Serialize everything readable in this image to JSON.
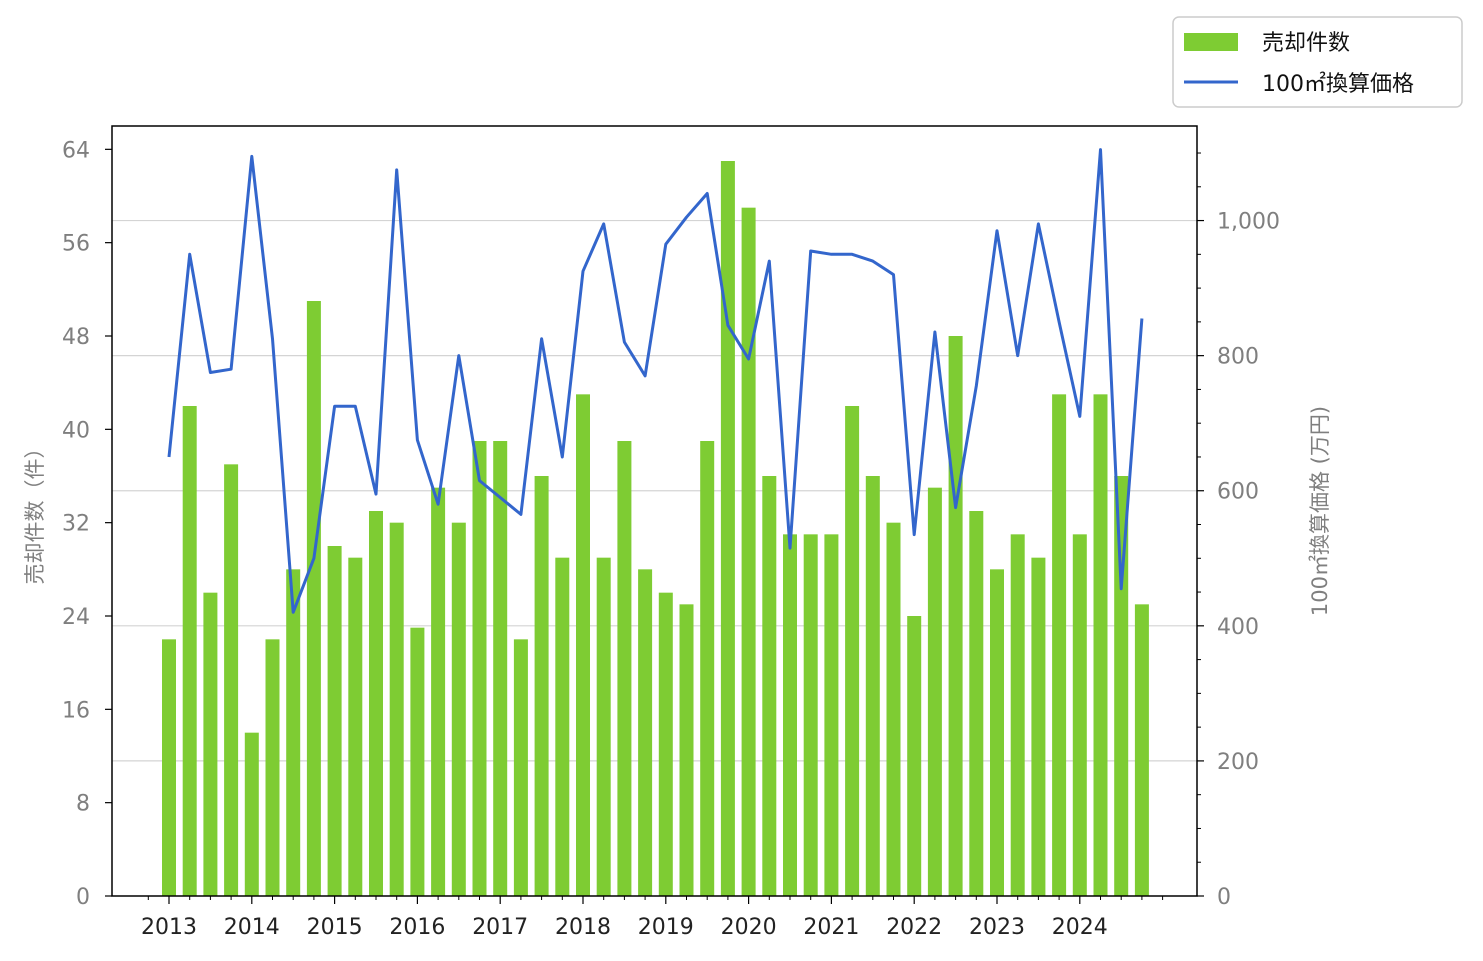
{
  "chart_data": {
    "type": "bar+line",
    "x_tick_labels": [
      "2013",
      "2014",
      "2015",
      "2016",
      "2017",
      "2018",
      "2019",
      "2020",
      "2021",
      "2022",
      "2023",
      "2024"
    ],
    "y_left": {
      "label": "売却件数（件）",
      "range": [
        0,
        66
      ],
      "ticks": [
        0,
        8,
        16,
        24,
        32,
        40,
        48,
        56,
        64
      ]
    },
    "y_right": {
      "label": "100㎡換算価格 (万円)",
      "range": [
        0,
        1140
      ],
      "ticks": [
        0,
        200,
        400,
        600,
        800,
        1000
      ],
      "tick_labels": [
        "0",
        "200",
        "400",
        "600",
        "800",
        "1,000"
      ]
    },
    "grid": "horizontal lines at right-axis major ticks",
    "legend": {
      "position": "top-right (outside plot)",
      "entries": [
        {
          "label": "売却件数",
          "type": "bar",
          "color": "#7ecc33"
        },
        {
          "label": "100㎡換算価格",
          "type": "line",
          "color": "#3366cc"
        }
      ]
    },
    "series": [
      {
        "name": "売却件数",
        "kind": "bar",
        "axis": "left",
        "color": "#7ecc33",
        "x": [
          2013.0,
          2013.25,
          2013.5,
          2013.75,
          2014.0,
          2014.25,
          2014.5,
          2014.75,
          2015.0,
          2015.25,
          2015.5,
          2015.75,
          2016.0,
          2016.25,
          2016.5,
          2016.75,
          2017.0,
          2017.25,
          2017.5,
          2017.75,
          2018.0,
          2018.25,
          2018.5,
          2018.75,
          2019.0,
          2019.25,
          2019.5,
          2019.75,
          2020.0,
          2020.25,
          2020.5,
          2020.75,
          2021.0,
          2021.25,
          2021.5,
          2021.75,
          2022.0,
          2022.25,
          2022.5,
          2022.75,
          2023.0,
          2023.25,
          2023.5,
          2023.75,
          2024.0,
          2024.25,
          2024.5,
          2024.75
        ],
        "values": [
          22,
          42,
          26,
          37,
          14,
          22,
          28,
          51,
          30,
          29,
          33,
          32,
          23,
          35,
          32,
          39,
          39,
          22,
          36,
          29,
          43,
          29,
          39,
          28,
          26,
          25,
          39,
          63,
          59,
          36,
          31,
          31,
          31,
          42,
          36,
          32,
          24,
          35,
          48,
          33,
          28,
          31,
          29,
          43,
          31,
          43,
          36,
          25
        ]
      },
      {
        "name": "100㎡換算価格",
        "kind": "line",
        "axis": "right",
        "color": "#3366cc",
        "x": [
          2013.0,
          2013.25,
          2013.5,
          2013.75,
          2014.0,
          2014.25,
          2014.5,
          2014.75,
          2015.0,
          2015.25,
          2015.5,
          2015.75,
          2016.0,
          2016.25,
          2016.5,
          2016.75,
          2017.0,
          2017.25,
          2017.5,
          2017.75,
          2018.0,
          2018.25,
          2018.5,
          2018.75,
          2019.0,
          2019.25,
          2019.5,
          2019.75,
          2020.0,
          2020.25,
          2020.5,
          2020.75,
          2021.0,
          2021.25,
          2021.5,
          2021.75,
          2022.0,
          2022.25,
          2022.5,
          2022.75,
          2023.0,
          2023.25,
          2023.5,
          2023.75,
          2024.0,
          2024.25,
          2024.5,
          2024.75
        ],
        "values": [
          650,
          950,
          775,
          780,
          1095,
          825,
          420,
          500,
          725,
          725,
          595,
          1075,
          675,
          580,
          800,
          615,
          590,
          565,
          825,
          650,
          925,
          995,
          820,
          770,
          965,
          1005,
          1040,
          845,
          795,
          940,
          515,
          955,
          950,
          950,
          940,
          920,
          535,
          835,
          575,
          755,
          985,
          800,
          995,
          850,
          710,
          1105,
          455,
          855
        ]
      }
    ]
  }
}
